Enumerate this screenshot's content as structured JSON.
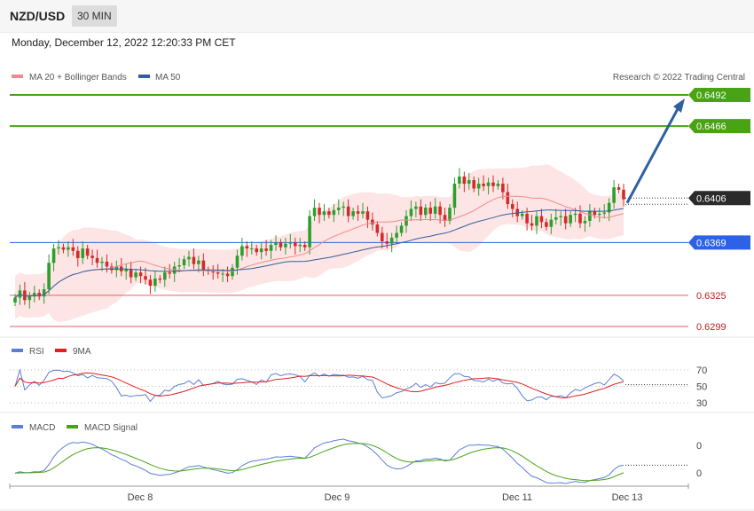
{
  "header": {
    "symbol": "NZD/USD",
    "timeframe": "30 MIN"
  },
  "datetime": "Monday, December 12, 2022 12:20:33 PM CET",
  "credit": "Research © 2022 Trading Central",
  "colors": {
    "ma20": "#f08a8a",
    "ma50": "#2f5f9e",
    "bands": "#fde1e1",
    "bull": "#2e9e2e",
    "bear": "#d42a2a",
    "resistance": "#4aa314",
    "support": "#2e62e6",
    "lower": "#e06060",
    "arrow": "#2f5f9e",
    "rsi": "#5b7fd6",
    "rsi_ma": "#e02020",
    "macd": "#5b7fd6",
    "macd_signal": "#4aa314"
  },
  "chart_data": [
    {
      "type": "candlestick",
      "legend": [
        {
          "name": "MA 20 + Bollinger Bands",
          "color": "#f08a8a"
        },
        {
          "name": "MA 50",
          "color": "#2f5f9e"
        }
      ],
      "x_labels": [
        "Dec 8",
        "Dec 9",
        "Dec 11",
        "Dec 13"
      ],
      "levels": [
        {
          "value": 0.6492,
          "label": "0.6492",
          "kind": "resistance"
        },
        {
          "value": 0.6466,
          "label": "0.6466",
          "kind": "resistance"
        },
        {
          "value": 0.6406,
          "label": "0.6406",
          "kind": "current"
        },
        {
          "value": 0.6369,
          "label": "0.6369",
          "kind": "support"
        },
        {
          "value": 0.6325,
          "label": "0.6325",
          "kind": "lower"
        },
        {
          "value": 0.6299,
          "label": "0.6299",
          "kind": "lower"
        }
      ],
      "forecast_target": 0.6492,
      "close_series": [
        0.6323,
        0.6329,
        0.6321,
        0.6324,
        0.6327,
        0.6324,
        0.633,
        0.6352,
        0.6364,
        0.6365,
        0.6363,
        0.6365,
        0.6362,
        0.6356,
        0.6364,
        0.6358,
        0.6356,
        0.6352,
        0.6353,
        0.6349,
        0.6346,
        0.6349,
        0.6345,
        0.6347,
        0.634,
        0.6344,
        0.6341,
        0.6338,
        0.6333,
        0.6339,
        0.6338,
        0.6344,
        0.6343,
        0.6349,
        0.635,
        0.6355,
        0.6357,
        0.6351,
        0.6354,
        0.6346,
        0.6345,
        0.6344,
        0.6343,
        0.6343,
        0.6341,
        0.6348,
        0.6358,
        0.6366,
        0.6364,
        0.6364,
        0.6361,
        0.6364,
        0.6362,
        0.6367,
        0.6369,
        0.6365,
        0.6368,
        0.6369,
        0.6366,
        0.6367,
        0.6365,
        0.6391,
        0.6398,
        0.6392,
        0.6395,
        0.6392,
        0.6396,
        0.6398,
        0.6399,
        0.6391,
        0.6395,
        0.6393,
        0.6395,
        0.6388,
        0.6384,
        0.6377,
        0.637,
        0.6368,
        0.6373,
        0.6377,
        0.6383,
        0.6391,
        0.6397,
        0.6399,
        0.6392,
        0.6398,
        0.6393,
        0.6399,
        0.6392,
        0.6387,
        0.6398,
        0.6418,
        0.6424,
        0.6418,
        0.6421,
        0.6414,
        0.6418,
        0.6416,
        0.6419,
        0.6416,
        0.6418,
        0.6411,
        0.6401,
        0.6397,
        0.6391,
        0.6393,
        0.6385,
        0.6383,
        0.6391,
        0.6386,
        0.6382,
        0.6388,
        0.639,
        0.6391,
        0.6385,
        0.6392,
        0.6393,
        0.6385,
        0.6387,
        0.6395,
        0.6392,
        0.6393,
        0.6394,
        0.6402,
        0.6415,
        0.6413,
        0.6405
      ]
    },
    {
      "type": "line",
      "title": "RSI",
      "series": [
        {
          "name": "RSI",
          "color": "#5b7fd6"
        },
        {
          "name": "9MA",
          "color": "#e02020"
        }
      ],
      "y_ticks": [
        70,
        50,
        30
      ],
      "current_rsi": 52
    },
    {
      "type": "line",
      "title": "MACD",
      "series": [
        {
          "name": "MACD",
          "color": "#5b7fd6"
        },
        {
          "name": "MACD Signal",
          "color": "#4aa314"
        }
      ],
      "y_ticks": [
        "0",
        "0"
      ]
    }
  ]
}
